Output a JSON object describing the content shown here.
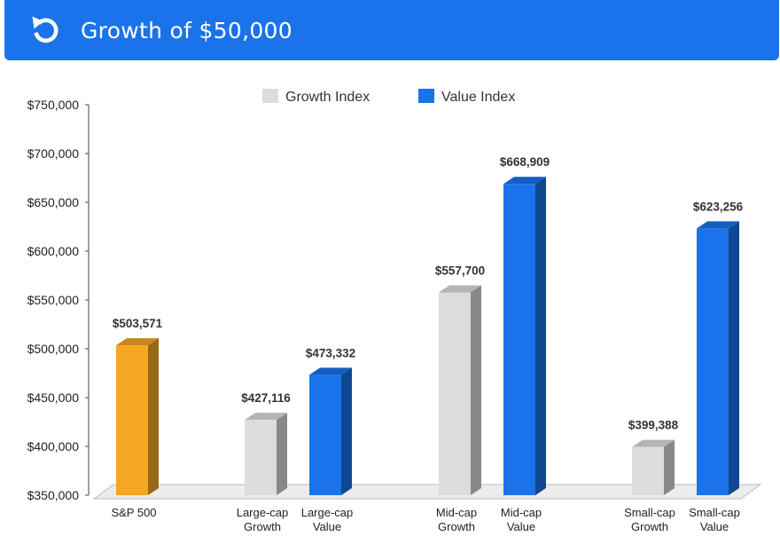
{
  "header": {
    "title": "Growth of $50,000",
    "icon": "refresh-icon",
    "color": "#1a73ea"
  },
  "chart_data": {
    "type": "bar",
    "title": "",
    "xlabel": "",
    "ylabel": "",
    "ylim": [
      350000,
      750000
    ],
    "yticks": [
      350000,
      400000,
      450000,
      500000,
      550000,
      600000,
      650000,
      700000,
      750000
    ],
    "ytick_labels": [
      "$350,000",
      "$400,000",
      "$450,000",
      "$500,000",
      "$550,000",
      "$600,000",
      "$650,000",
      "$700,000",
      "$750,000"
    ],
    "legend": {
      "placement": "top",
      "entries": [
        {
          "name": "Growth Index",
          "color": "#dcdcdc"
        },
        {
          "name": "Value Index",
          "color": "#1a73ea"
        }
      ]
    },
    "bars": [
      {
        "label": [
          "S&P 500"
        ],
        "value": 503571,
        "value_label": "$503,571",
        "color": "#f5a623"
      },
      {
        "label": [
          "Large-cap",
          "Growth"
        ],
        "value": 427116,
        "value_label": "$427,116",
        "color": "#dcdcdc"
      },
      {
        "label": [
          "Large-cap",
          "Value"
        ],
        "value": 473332,
        "value_label": "$473,332",
        "color": "#1a73ea"
      },
      {
        "label": [
          "Mid-cap",
          "Growth"
        ],
        "value": 557700,
        "value_label": "$557,700",
        "color": "#dcdcdc"
      },
      {
        "label": [
          "Mid-cap",
          "Value"
        ],
        "value": 668909,
        "value_label": "$668,909",
        "color": "#1a73ea"
      },
      {
        "label": [
          "Small-cap",
          "Growth"
        ],
        "value": 399388,
        "value_label": "$399,388",
        "color": "#dcdcdc"
      },
      {
        "label": [
          "Small-cap",
          "Value"
        ],
        "value": 623256,
        "value_label": "$623,256",
        "color": "#1a73ea"
      }
    ]
  }
}
